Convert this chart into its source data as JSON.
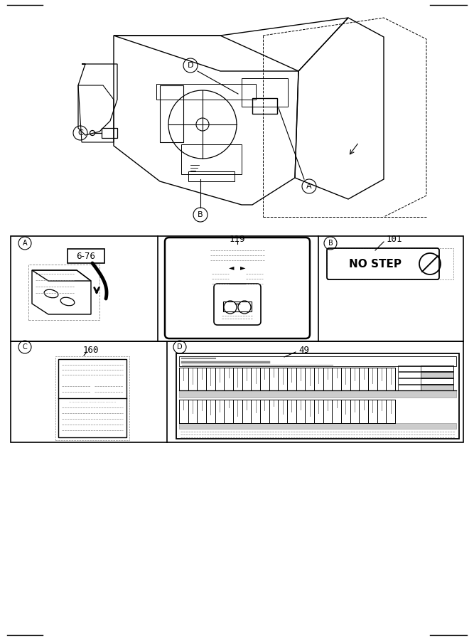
{
  "bg_color": "#ffffff",
  "line_color": "#000000",
  "gray_color": "#888888",
  "light_gray": "#cccccc",
  "part_6_76": "6-76",
  "part_119": "119",
  "part_101": "101",
  "part_160": "160",
  "part_49": "49",
  "nostep_text": "NO STEP"
}
